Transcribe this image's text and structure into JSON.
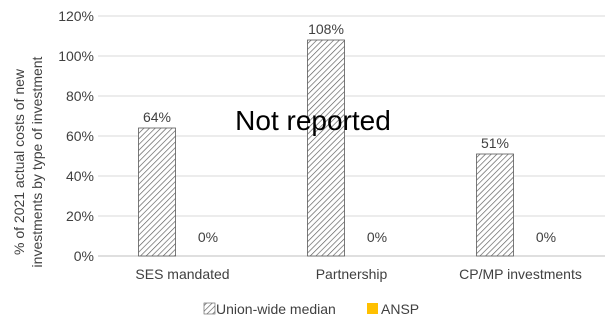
{
  "chart_data": {
    "type": "bar",
    "categories": [
      "SES mandated",
      "Partnership",
      "CP/MP investments"
    ],
    "series": [
      {
        "name": "Union-wide median",
        "values": [
          64,
          108,
          51
        ],
        "labels": [
          "64%",
          "108%",
          "51%"
        ],
        "color": "#595959",
        "pattern": "diagonal-hatch"
      },
      {
        "name": "ANSP",
        "values": [
          0,
          0,
          0
        ],
        "labels": [
          "0%",
          "0%",
          "0%"
        ],
        "color": "#FFC000"
      }
    ],
    "ylabel_line1": "% of 2021 actual costs of new",
    "ylabel_line2": "investments by type of investment",
    "ylim": [
      0,
      120
    ],
    "yticks": [
      0,
      20,
      40,
      60,
      80,
      100,
      120
    ],
    "ytick_labels": [
      "0%",
      "20%",
      "40%",
      "60%",
      "80%",
      "100%",
      "120%"
    ],
    "annotation": "Not reported",
    "grid": true,
    "legend_position": "bottom"
  }
}
